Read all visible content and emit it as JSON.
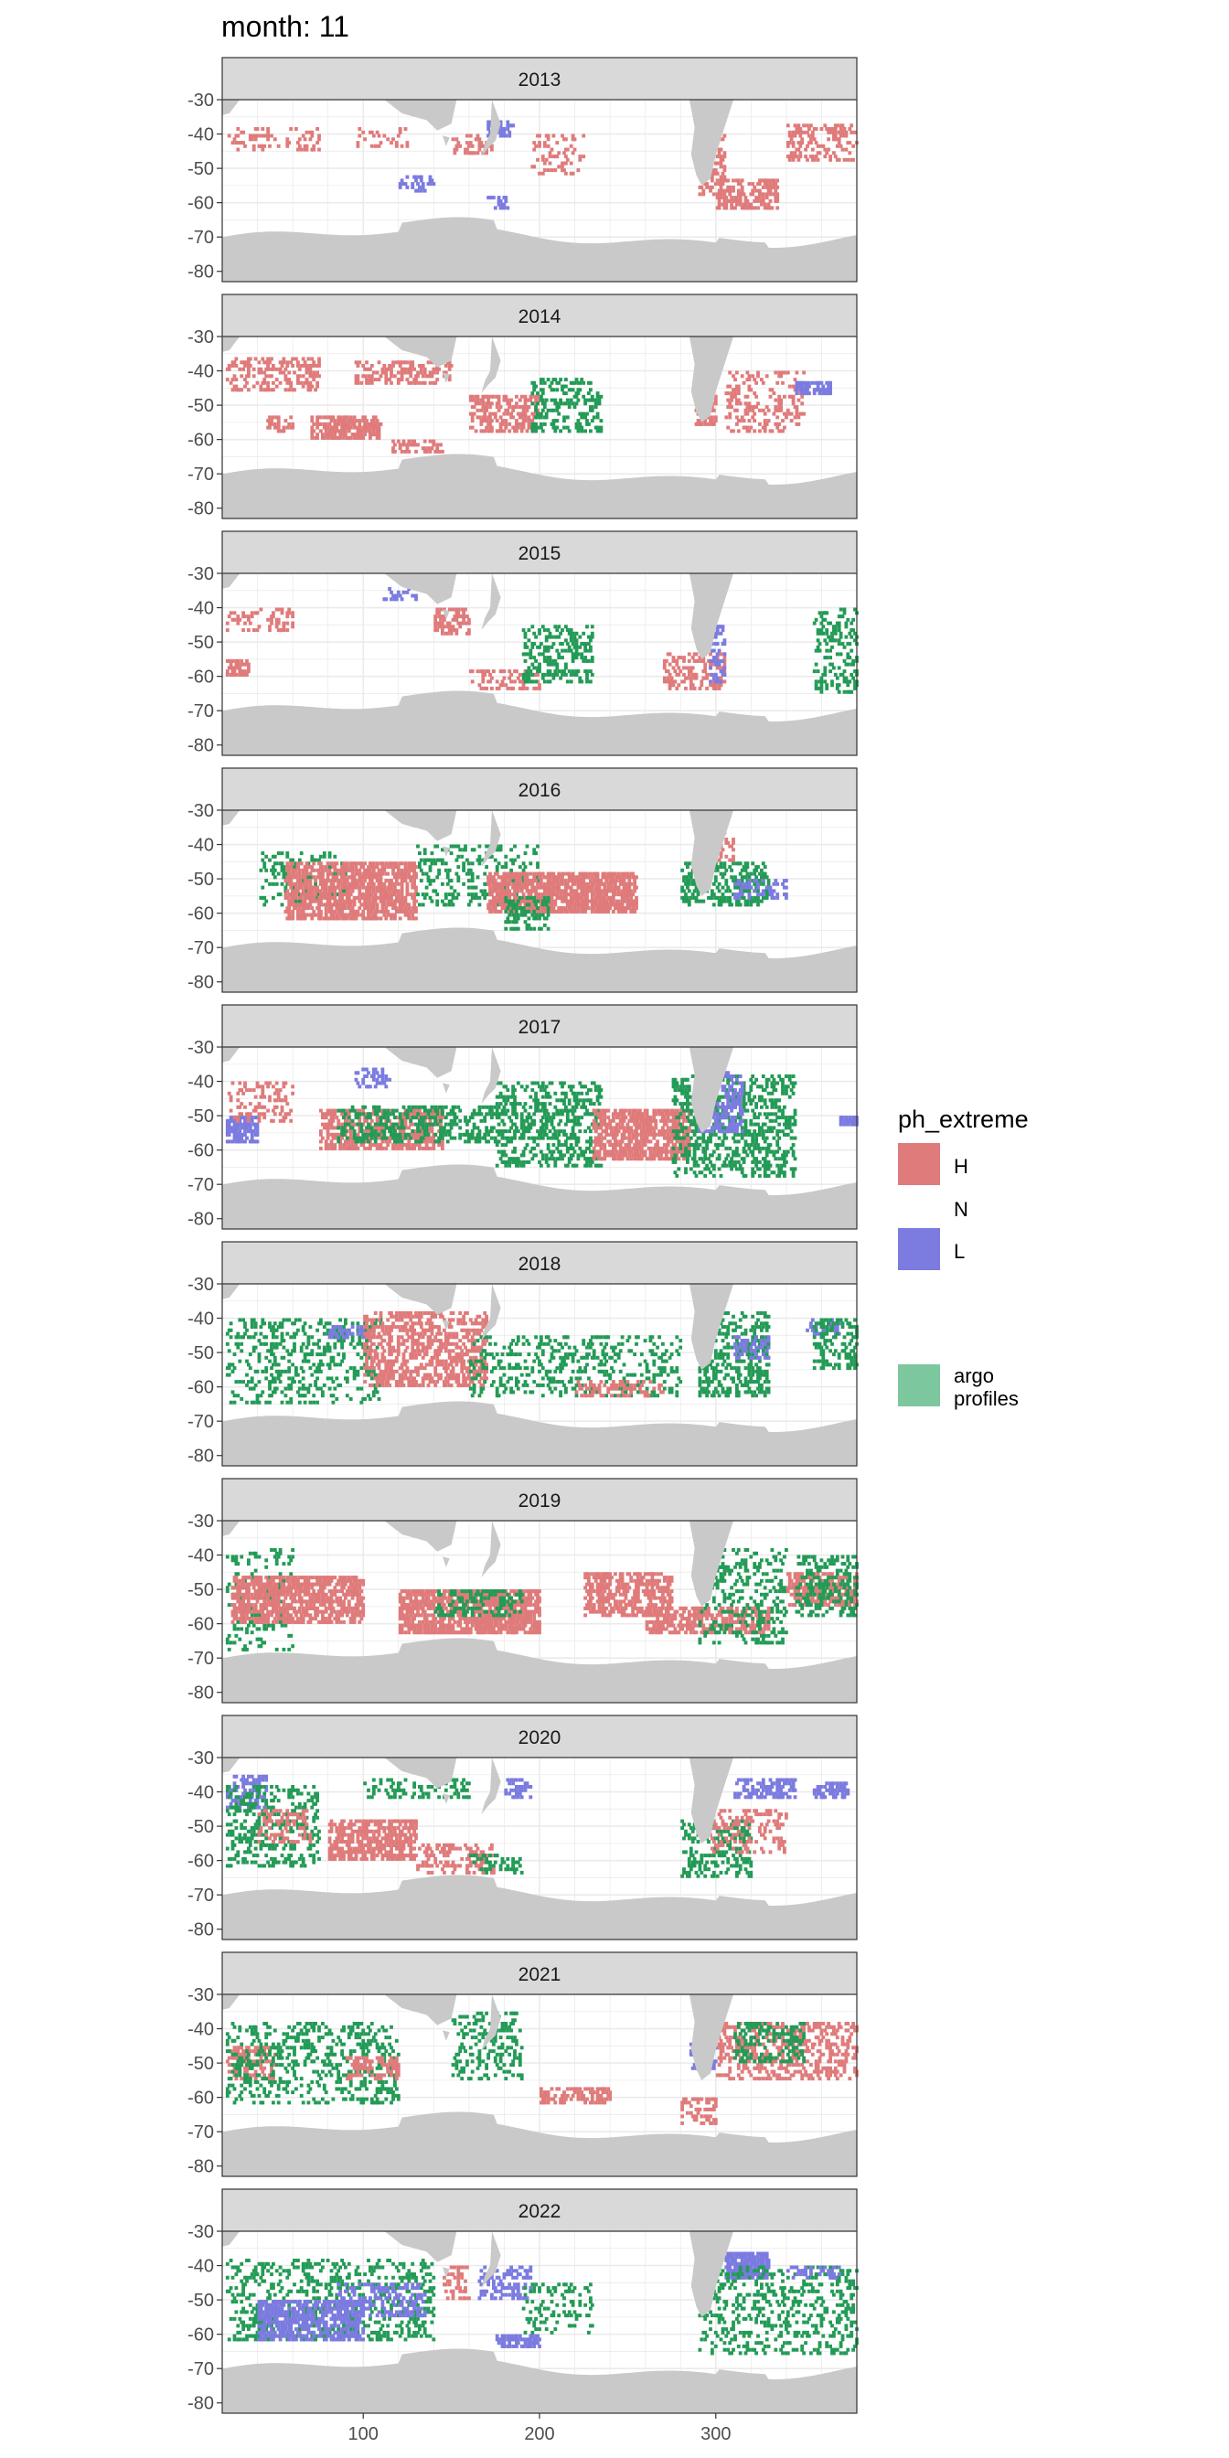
{
  "title": "month: 11",
  "legend": {
    "title": "ph_extreme",
    "placement": "right",
    "items": [
      {
        "key": "H",
        "label": "H",
        "color": "#E07B7B"
      },
      {
        "key": "N",
        "label": "N",
        "color": ""
      },
      {
        "key": "L",
        "label": "L",
        "color": "#7B7BE0"
      }
    ],
    "argo": {
      "label_line1": "argo",
      "label_line2": "profiles",
      "color": "#7DC79F"
    }
  },
  "colors": {
    "panel_strip": "#D9D9D9",
    "land": "#C9C9C9",
    "grid": "#EBEBEB",
    "ocean": "#FFFFFF",
    "high": "#E07B7B",
    "low": "#7B7BE0",
    "argo": "#239B56"
  },
  "chart_data": {
    "type": "heatmap",
    "facet_variable": "year",
    "panels": [
      "2013",
      "2014",
      "2015",
      "2016",
      "2017",
      "2018",
      "2019",
      "2020",
      "2021",
      "2022"
    ],
    "x_ticks": [
      100,
      200,
      300
    ],
    "x_tick_labels": [
      "100",
      "200",
      "300"
    ],
    "xlim": [
      20,
      380
    ],
    "y_ticks": [
      -30,
      -40,
      -50,
      -60,
      -70,
      -80
    ],
    "y_tick_labels": [
      "-30",
      "-40",
      "-50",
      "-60",
      "-70",
      "-80"
    ],
    "ylim": [
      -83,
      -30
    ],
    "grid": true,
    "fill_variable": "ph_extreme",
    "series": [
      {
        "name": "H",
        "color": "#E07B7B"
      },
      {
        "name": "N"
      },
      {
        "name": "L",
        "color": "#7B7BE0"
      },
      {
        "name": "argo profiles",
        "color": "#239B56"
      }
    ],
    "cells_by_year": {
      "2013": [
        {
          "s": "H",
          "x": [
            22,
            75
          ],
          "y": [
            -45,
            -38
          ],
          "d": 0.18
        },
        {
          "s": "H",
          "x": [
            95,
            125
          ],
          "y": [
            -44,
            -38
          ],
          "d": 0.2
        },
        {
          "s": "H",
          "x": [
            150,
            175
          ],
          "y": [
            -46,
            -40
          ],
          "d": 0.25
        },
        {
          "s": "H",
          "x": [
            195,
            225
          ],
          "y": [
            -52,
            -40
          ],
          "d": 0.18
        },
        {
          "s": "L",
          "x": [
            120,
            140
          ],
          "y": [
            -57,
            -52
          ],
          "d": 0.3
        },
        {
          "s": "L",
          "x": [
            170,
            185
          ],
          "y": [
            -41,
            -36
          ],
          "d": 0.5
        },
        {
          "s": "L",
          "x": [
            170,
            182
          ],
          "y": [
            -62,
            -58
          ],
          "d": 0.5
        },
        {
          "s": "H",
          "x": [
            290,
            305
          ],
          "y": [
            -58,
            -40
          ],
          "d": 0.3
        },
        {
          "s": "H",
          "x": [
            300,
            335
          ],
          "y": [
            -62,
            -53
          ],
          "d": 0.45
        },
        {
          "s": "H",
          "x": [
            340,
            380
          ],
          "y": [
            -48,
            -37
          ],
          "d": 0.3
        }
      ],
      "2014": [
        {
          "s": "H",
          "x": [
            22,
            75
          ],
          "y": [
            -46,
            -36
          ],
          "d": 0.3
        },
        {
          "s": "H",
          "x": [
            45,
            60
          ],
          "y": [
            -58,
            -53
          ],
          "d": 0.4
        },
        {
          "s": "H",
          "x": [
            70,
            110
          ],
          "y": [
            -60,
            -53
          ],
          "d": 0.55
        },
        {
          "s": "H",
          "x": [
            95,
            150
          ],
          "y": [
            -44,
            -37
          ],
          "d": 0.35
        },
        {
          "s": "H",
          "x": [
            115,
            145
          ],
          "y": [
            -64,
            -60
          ],
          "d": 0.35
        },
        {
          "s": "H",
          "x": [
            160,
            200
          ],
          "y": [
            -58,
            -47
          ],
          "d": 0.45
        },
        {
          "s": "G",
          "x": [
            195,
            235
          ],
          "y": [
            -58,
            -42
          ],
          "d": 0.3
        },
        {
          "s": "H",
          "x": [
            288,
            300
          ],
          "y": [
            -56,
            -47
          ],
          "d": 0.5
        },
        {
          "s": "H",
          "x": [
            305,
            350
          ],
          "y": [
            -58,
            -40
          ],
          "d": 0.22
        },
        {
          "s": "L",
          "x": [
            345,
            365
          ],
          "y": [
            -47,
            -43
          ],
          "d": 0.7
        }
      ],
      "2015": [
        {
          "s": "H",
          "x": [
            22,
            60
          ],
          "y": [
            -47,
            -40
          ],
          "d": 0.25
        },
        {
          "s": "H",
          "x": [
            22,
            35
          ],
          "y": [
            -60,
            -55
          ],
          "d": 0.6
        },
        {
          "s": "H",
          "x": [
            140,
            160
          ],
          "y": [
            -48,
            -40
          ],
          "d": 0.5
        },
        {
          "s": "L",
          "x": [
            110,
            130
          ],
          "y": [
            -38,
            -34
          ],
          "d": 0.3
        },
        {
          "s": "H",
          "x": [
            160,
            200
          ],
          "y": [
            -64,
            -58
          ],
          "d": 0.25
        },
        {
          "s": "G",
          "x": [
            190,
            230
          ],
          "y": [
            -62,
            -45
          ],
          "d": 0.3
        },
        {
          "s": "H",
          "x": [
            270,
            305
          ],
          "y": [
            -64,
            -53
          ],
          "d": 0.3
        },
        {
          "s": "L",
          "x": [
            295,
            305
          ],
          "y": [
            -62,
            -45
          ],
          "d": 0.3
        },
        {
          "s": "G",
          "x": [
            355,
            380
          ],
          "y": [
            -65,
            -40
          ],
          "d": 0.25
        }
      ],
      "2016": [
        {
          "s": "G",
          "x": [
            40,
            90
          ],
          "y": [
            -58,
            -42
          ],
          "d": 0.2
        },
        {
          "s": "H",
          "x": [
            55,
            130
          ],
          "y": [
            -62,
            -45
          ],
          "d": 0.6
        },
        {
          "s": "G",
          "x": [
            130,
            200
          ],
          "y": [
            -58,
            -40
          ],
          "d": 0.2
        },
        {
          "s": "H",
          "x": [
            170,
            255
          ],
          "y": [
            -60,
            -48
          ],
          "d": 0.65
        },
        {
          "s": "G",
          "x": [
            180,
            205
          ],
          "y": [
            -65,
            -55
          ],
          "d": 0.35
        },
        {
          "s": "G",
          "x": [
            280,
            330
          ],
          "y": [
            -58,
            -45
          ],
          "d": 0.35
        },
        {
          "s": "L",
          "x": [
            310,
            340
          ],
          "y": [
            -56,
            -50
          ],
          "d": 0.3
        },
        {
          "s": "H",
          "x": [
            290,
            310
          ],
          "y": [
            -45,
            -35
          ],
          "d": 0.3
        }
      ],
      "2017": [
        {
          "s": "L",
          "x": [
            22,
            40
          ],
          "y": [
            -58,
            -50
          ],
          "d": 0.6
        },
        {
          "s": "H",
          "x": [
            22,
            60
          ],
          "y": [
            -52,
            -40
          ],
          "d": 0.2
        },
        {
          "s": "H",
          "x": [
            75,
            145
          ],
          "y": [
            -60,
            -48
          ],
          "d": 0.45
        },
        {
          "s": "G",
          "x": [
            85,
            180
          ],
          "y": [
            -58,
            -47
          ],
          "d": 0.3
        },
        {
          "s": "L",
          "x": [
            95,
            115
          ],
          "y": [
            -42,
            -36
          ],
          "d": 0.35
        },
        {
          "s": "G",
          "x": [
            175,
            235
          ],
          "y": [
            -65,
            -40
          ],
          "d": 0.3
        },
        {
          "s": "H",
          "x": [
            230,
            285
          ],
          "y": [
            -63,
            -48
          ],
          "d": 0.6
        },
        {
          "s": "G",
          "x": [
            275,
            345
          ],
          "y": [
            -68,
            -38
          ],
          "d": 0.3
        },
        {
          "s": "L",
          "x": [
            290,
            315
          ],
          "y": [
            -55,
            -37
          ],
          "d": 0.4
        },
        {
          "s": "L",
          "x": [
            370,
            380
          ],
          "y": [
            -53,
            -50
          ],
          "d": 0.7
        }
      ],
      "2018": [
        {
          "s": "G",
          "x": [
            22,
            110
          ],
          "y": [
            -65,
            -40
          ],
          "d": 0.2
        },
        {
          "s": "L",
          "x": [
            80,
            100
          ],
          "y": [
            -46,
            -42
          ],
          "d": 0.4
        },
        {
          "s": "H",
          "x": [
            100,
            170
          ],
          "y": [
            -60,
            -38
          ],
          "d": 0.4
        },
        {
          "s": "G",
          "x": [
            160,
            280
          ],
          "y": [
            -63,
            -45
          ],
          "d": 0.2
        },
        {
          "s": "H",
          "x": [
            220,
            270
          ],
          "y": [
            -63,
            -58
          ],
          "d": 0.3
        },
        {
          "s": "G",
          "x": [
            290,
            330
          ],
          "y": [
            -63,
            -38
          ],
          "d": 0.35
        },
        {
          "s": "L",
          "x": [
            310,
            330
          ],
          "y": [
            -52,
            -45
          ],
          "d": 0.4
        },
        {
          "s": "L",
          "x": [
            350,
            370
          ],
          "y": [
            -45,
            -40
          ],
          "d": 0.4
        },
        {
          "s": "G",
          "x": [
            355,
            380
          ],
          "y": [
            -55,
            -40
          ],
          "d": 0.3
        }
      ],
      "2019": [
        {
          "s": "G",
          "x": [
            22,
            60
          ],
          "y": [
            -68,
            -38
          ],
          "d": 0.15
        },
        {
          "s": "H",
          "x": [
            25,
            100
          ],
          "y": [
            -60,
            -46
          ],
          "d": 0.6
        },
        {
          "s": "H",
          "x": [
            120,
            200
          ],
          "y": [
            -63,
            -50
          ],
          "d": 0.65
        },
        {
          "s": "G",
          "x": [
            140,
            190
          ],
          "y": [
            -58,
            -50
          ],
          "d": 0.3
        },
        {
          "s": "H",
          "x": [
            225,
            275
          ],
          "y": [
            -58,
            -45
          ],
          "d": 0.5
        },
        {
          "s": "H",
          "x": [
            260,
            330
          ],
          "y": [
            -63,
            -55
          ],
          "d": 0.5
        },
        {
          "s": "G",
          "x": [
            290,
            340
          ],
          "y": [
            -66,
            -38
          ],
          "d": 0.2
        },
        {
          "s": "H",
          "x": [
            340,
            380
          ],
          "y": [
            -55,
            -45
          ],
          "d": 0.4
        },
        {
          "s": "G",
          "x": [
            345,
            380
          ],
          "y": [
            -58,
            -40
          ],
          "d": 0.3
        }
      ],
      "2020": [
        {
          "s": "L",
          "x": [
            22,
            45
          ],
          "y": [
            -45,
            -35
          ],
          "d": 0.35
        },
        {
          "s": "G",
          "x": [
            22,
            75
          ],
          "y": [
            -62,
            -38
          ],
          "d": 0.25
        },
        {
          "s": "H",
          "x": [
            40,
            70
          ],
          "y": [
            -55,
            -45
          ],
          "d": 0.3
        },
        {
          "s": "H",
          "x": [
            80,
            130
          ],
          "y": [
            -60,
            -48
          ],
          "d": 0.55
        },
        {
          "s": "G",
          "x": [
            100,
            160
          ],
          "y": [
            -42,
            -36
          ],
          "d": 0.25
        },
        {
          "s": "H",
          "x": [
            130,
            175
          ],
          "y": [
            -64,
            -55
          ],
          "d": 0.3
        },
        {
          "s": "L",
          "x": [
            180,
            195
          ],
          "y": [
            -42,
            -36
          ],
          "d": 0.4
        },
        {
          "s": "G",
          "x": [
            160,
            190
          ],
          "y": [
            -64,
            -58
          ],
          "d": 0.3
        },
        {
          "s": "G",
          "x": [
            280,
            320
          ],
          "y": [
            -65,
            -48
          ],
          "d": 0.3
        },
        {
          "s": "L",
          "x": [
            310,
            345
          ],
          "y": [
            -42,
            -36
          ],
          "d": 0.5
        },
        {
          "s": "L",
          "x": [
            355,
            375
          ],
          "y": [
            -42,
            -37
          ],
          "d": 0.5
        },
        {
          "s": "H",
          "x": [
            295,
            340
          ],
          "y": [
            -58,
            -45
          ],
          "d": 0.2
        }
      ],
      "2021": [
        {
          "s": "H",
          "x": [
            22,
            50
          ],
          "y": [
            -55,
            -45
          ],
          "d": 0.35
        },
        {
          "s": "G",
          "x": [
            22,
            120
          ],
          "y": [
            -62,
            -38
          ],
          "d": 0.2
        },
        {
          "s": "H",
          "x": [
            90,
            120
          ],
          "y": [
            -55,
            -48
          ],
          "d": 0.4
        },
        {
          "s": "G",
          "x": [
            150,
            190
          ],
          "y": [
            -55,
            -35
          ],
          "d": 0.2
        },
        {
          "s": "H",
          "x": [
            200,
            240
          ],
          "y": [
            -62,
            -57
          ],
          "d": 0.35
        },
        {
          "s": "L",
          "x": [
            285,
            300
          ],
          "y": [
            -52,
            -44
          ],
          "d": 0.4
        },
        {
          "s": "H",
          "x": [
            300,
            380
          ],
          "y": [
            -55,
            -38
          ],
          "d": 0.3
        },
        {
          "s": "G",
          "x": [
            310,
            350
          ],
          "y": [
            -50,
            -38
          ],
          "d": 0.3
        },
        {
          "s": "H",
          "x": [
            280,
            300
          ],
          "y": [
            -68,
            -60
          ],
          "d": 0.3
        }
      ],
      "2022": [
        {
          "s": "G",
          "x": [
            22,
            140
          ],
          "y": [
            -62,
            -38
          ],
          "d": 0.2
        },
        {
          "s": "L",
          "x": [
            40,
            100
          ],
          "y": [
            -62,
            -50
          ],
          "d": 0.55
        },
        {
          "s": "L",
          "x": [
            85,
            135
          ],
          "y": [
            -55,
            -45
          ],
          "d": 0.3
        },
        {
          "s": "H",
          "x": [
            145,
            160
          ],
          "y": [
            -50,
            -40
          ],
          "d": 0.3
        },
        {
          "s": "L",
          "x": [
            165,
            195
          ],
          "y": [
            -50,
            -40
          ],
          "d": 0.35
        },
        {
          "s": "L",
          "x": [
            175,
            200
          ],
          "y": [
            -64,
            -60
          ],
          "d": 0.5
        },
        {
          "s": "G",
          "x": [
            190,
            230
          ],
          "y": [
            -60,
            -45
          ],
          "d": 0.15
        },
        {
          "s": "L",
          "x": [
            305,
            330
          ],
          "y": [
            -44,
            -36
          ],
          "d": 0.8
        },
        {
          "s": "G",
          "x": [
            290,
            380
          ],
          "y": [
            -66,
            -40
          ],
          "d": 0.2
        },
        {
          "s": "L",
          "x": [
            340,
            370
          ],
          "y": [
            -44,
            -40
          ],
          "d": 0.3
        }
      ]
    }
  }
}
